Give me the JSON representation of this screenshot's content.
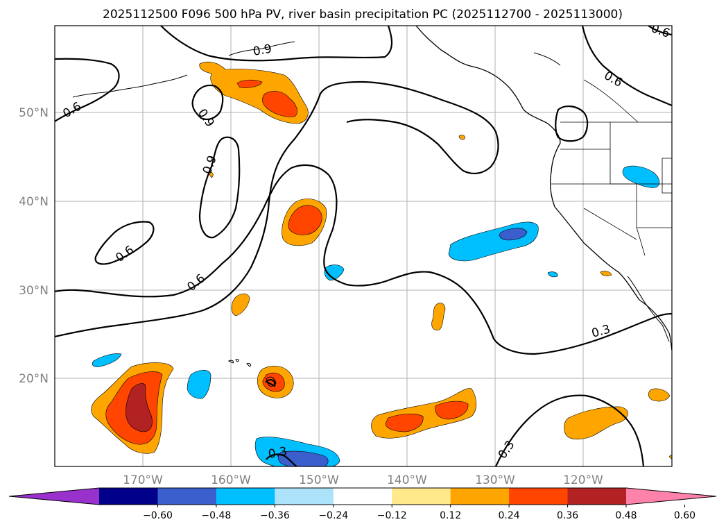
{
  "title": "2025112500 F096 500 hPa PV, river basin precipitation PC (2025112700 - 2025113000)",
  "map": {
    "lat_labels": [
      "50°N",
      "40°N",
      "30°N",
      "20°N"
    ],
    "lon_labels": [
      "170°W",
      "160°W",
      "150°W",
      "140°W",
      "130°W",
      "120°W"
    ],
    "contour_labels": [
      "0.6",
      "0.9",
      "0.9",
      "0.9",
      "0.6",
      "0.6",
      "0.6",
      "0.6",
      "0.3",
      "0.3",
      "0.3"
    ]
  },
  "colorbar": {
    "ticks": [
      "−0.60",
      "−0.48",
      "−0.36",
      "−0.24",
      "−0.12",
      "0.12",
      "0.24",
      "0.36",
      "0.48",
      "0.60"
    ],
    "colors": [
      "#9932CC",
      "#00008B",
      "#3A5FCD",
      "#00BFFF",
      "#ADE3FA",
      "#FFFFFF",
      "#FFE98A",
      "#FFA500",
      "#FF4500",
      "#B22222",
      "#FF82AB"
    ]
  }
}
